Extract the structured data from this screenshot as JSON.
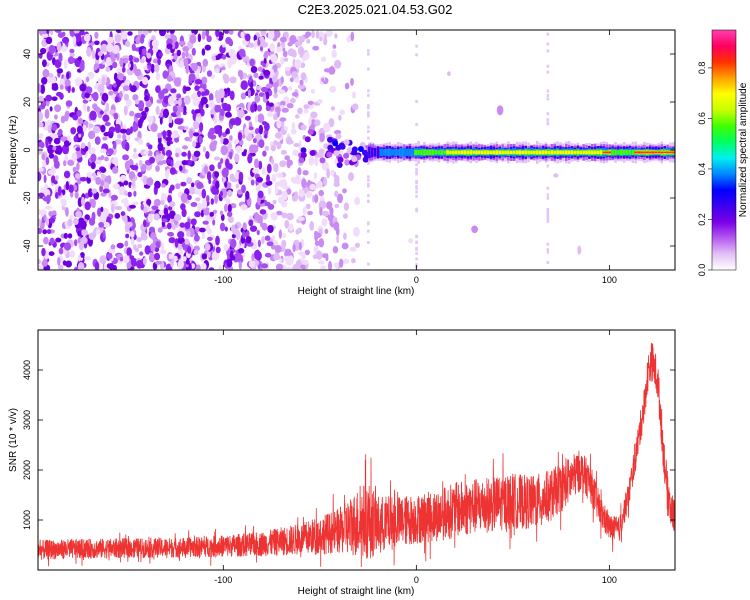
{
  "figure": {
    "title": "C2E3.2025.021.04.53.G02"
  },
  "chart_data": [
    {
      "type": "heatmap",
      "xlabel": "Height of straight line (km)",
      "ylabel": "Frequency (Hz)",
      "xlim": [
        -196,
        134
      ],
      "ylim": [
        -50,
        50
      ],
      "xticks": [
        -100,
        0,
        100
      ],
      "xtick_labels": [
        "-100",
        "0",
        "100"
      ],
      "yticks": [
        -40,
        -20,
        0,
        20,
        40
      ],
      "ytick_labels": [
        "-40",
        "-20",
        "0",
        "20",
        "40"
      ],
      "colorbar": {
        "label": "Normalized spectral amplitude",
        "range": [
          0,
          0.95
        ],
        "ticks": [
          0,
          0.2,
          0.4,
          0.6,
          0.8
        ],
        "tick_labels": [
          "0.0",
          "0.2",
          "0.4",
          "0.6",
          "0.8"
        ],
        "colors": [
          "#ffffff",
          "#e2c0f5",
          "#b45af0",
          "#7a00e6",
          "#3c00f0",
          "#0000ff",
          "#0088ff",
          "#00f0f0",
          "#00ff60",
          "#40ff00",
          "#c8ff00",
          "#ffff00",
          "#ffa000",
          "#ff3000",
          "#ff0060",
          "#ff40b0"
        ]
      },
      "features": [
        {
          "description_key": "noise",
          "x_range": [
            -196,
            -30
          ],
          "y_range": [
            -50,
            50
          ],
          "amplitude": 0.1
        },
        {
          "description_key": "signal_band",
          "x_range": [
            -60,
            134
          ],
          "frequency_hz": -1,
          "peak_amplitude": 0.9
        }
      ],
      "grid": false,
      "legend": "none"
    },
    {
      "type": "line",
      "xlabel": "Height of straight line (km)",
      "ylabel": "SNR (10 * v/v)",
      "xlim": [
        -196,
        134
      ],
      "ylim": [
        0,
        4800
      ],
      "xticks": [
        -100,
        0,
        100
      ],
      "xtick_labels": [
        "-100",
        "0",
        "100"
      ],
      "yticks": [
        1000,
        2000,
        3000,
        4000
      ],
      "ytick_labels": [
        "1000",
        "2000",
        "3000",
        "4000"
      ],
      "series": [
        {
          "color": "#ee3333",
          "x": [
            -195,
            -180,
            -160,
            -140,
            -120,
            -100,
            -80,
            -60,
            -40,
            -30,
            -25,
            -20,
            -10,
            0,
            10,
            20,
            30,
            40,
            50,
            60,
            70,
            80,
            85,
            90,
            95,
            100,
            105,
            110,
            115,
            118,
            120,
            122,
            125,
            128,
            130,
            132,
            134
          ],
          "y": [
            400,
            420,
            430,
            440,
            450,
            480,
            520,
            620,
            780,
            950,
            1000,
            900,
            960,
            1020,
            1080,
            1200,
            1270,
            1320,
            1380,
            1350,
            1500,
            1820,
            2000,
            1750,
            1200,
            850,
            800,
            1500,
            2600,
            3300,
            3950,
            4200,
            3800,
            2400,
            1600,
            1200,
            1050
          ],
          "noise": [
            200,
            200,
            200,
            200,
            200,
            220,
            250,
            320,
            450,
            700,
            800,
            600,
            520,
            500,
            520,
            560,
            560,
            560,
            560,
            540,
            520,
            460,
            420,
            380,
            340,
            260,
            260,
            280,
            320,
            350,
            380,
            400,
            420,
            420,
            400,
            380,
            360
          ]
        }
      ],
      "grid": false,
      "legend": "none"
    }
  ]
}
